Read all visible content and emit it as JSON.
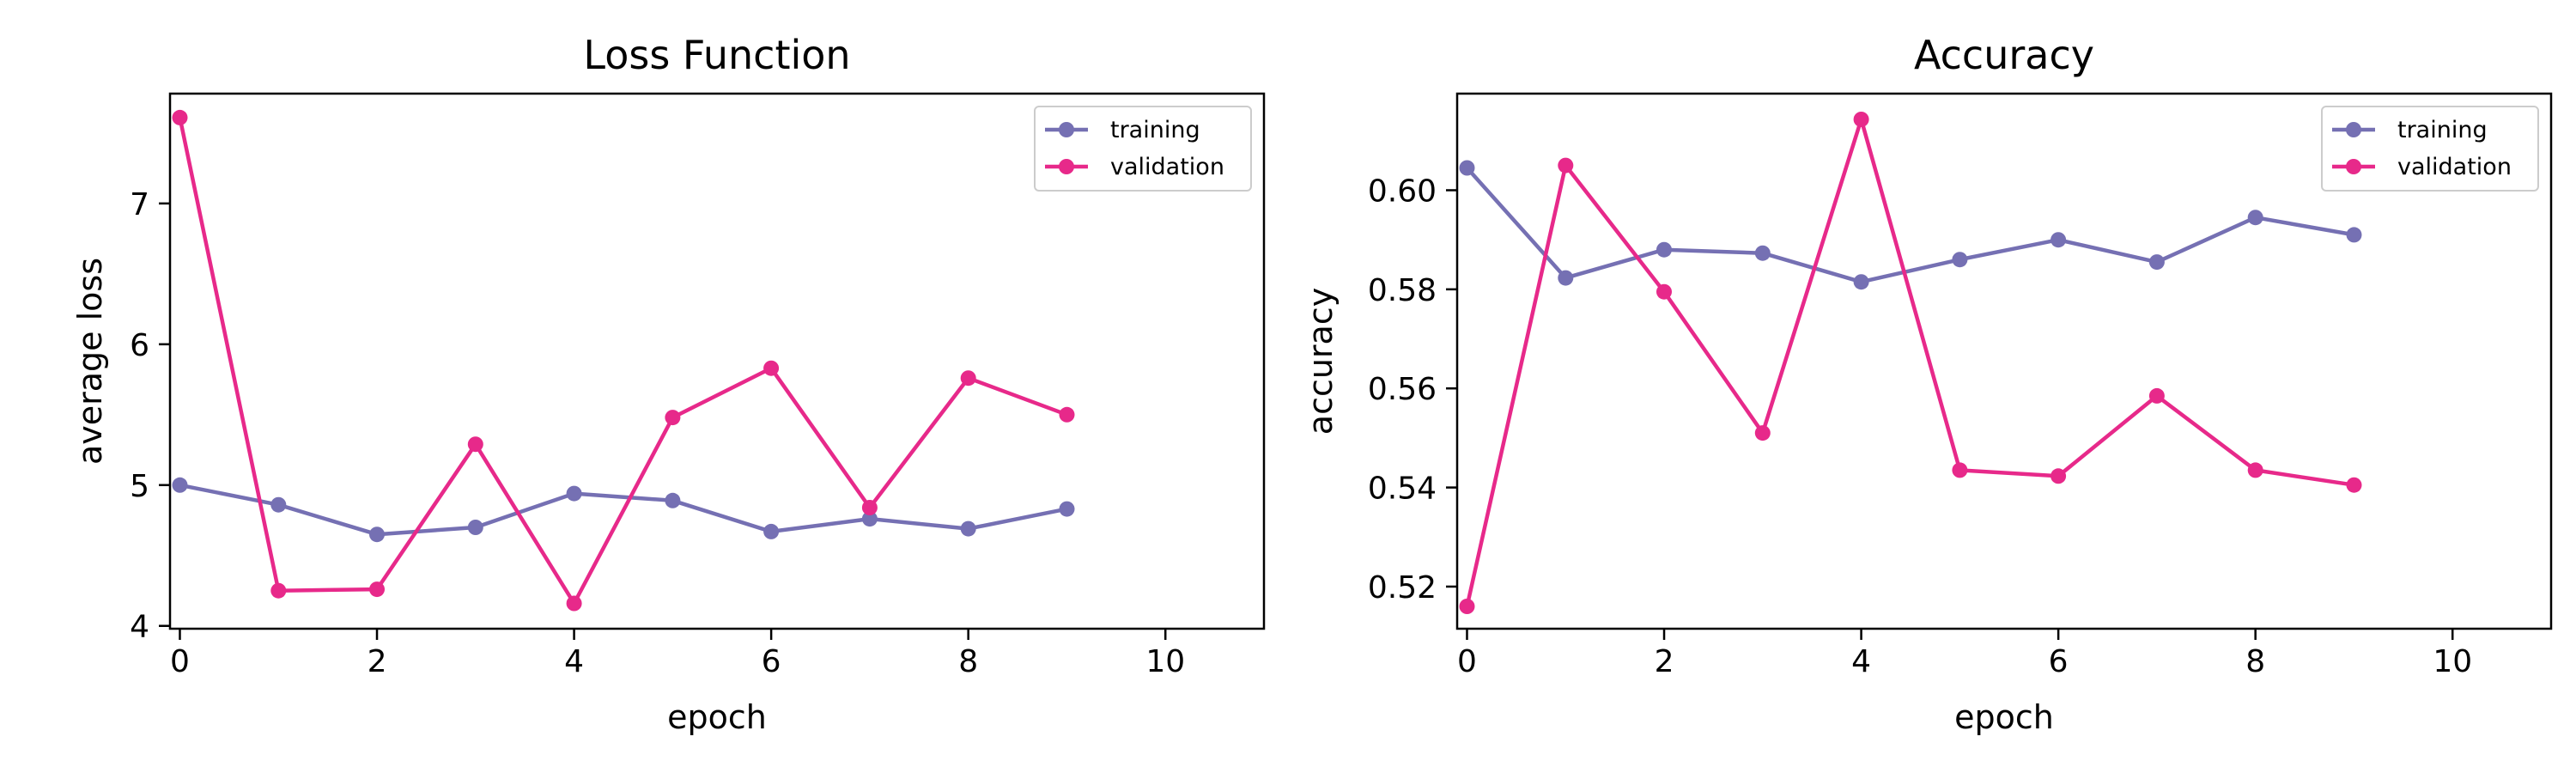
{
  "chart_data": [
    {
      "type": "line",
      "title": "Loss Function",
      "xlabel": "epoch",
      "ylabel": "average loss",
      "xlim": [
        -0.1,
        11
      ],
      "ylim": [
        3.98,
        7.78
      ],
      "xticks": [
        0,
        2,
        4,
        6,
        8,
        10
      ],
      "yticks": [
        4,
        5,
        6,
        7
      ],
      "grid": false,
      "legend_position": "top-right",
      "x": [
        0,
        1,
        2,
        3,
        4,
        5,
        6,
        7,
        8,
        9
      ],
      "series": [
        {
          "name": "training",
          "color": "#7570b3",
          "values": [
            5.0,
            4.86,
            4.65,
            4.7,
            4.94,
            4.89,
            4.67,
            4.76,
            4.69,
            4.83
          ]
        },
        {
          "name": "validation",
          "color": "#e7298a",
          "values": [
            7.61,
            4.25,
            4.26,
            5.29,
            4.16,
            5.48,
            5.83,
            4.84,
            5.76,
            5.5
          ]
        }
      ]
    },
    {
      "type": "line",
      "title": "Accuracy",
      "xlabel": "epoch",
      "ylabel": "accuracy",
      "xlim": [
        -0.1,
        11
      ],
      "ylim": [
        0.5115,
        0.6195
      ],
      "xticks": [
        0,
        2,
        4,
        6,
        8,
        10
      ],
      "yticks": [
        0.52,
        0.54,
        0.56,
        0.58,
        0.6
      ],
      "grid": false,
      "legend_position": "top-right",
      "x": [
        0,
        1,
        2,
        3,
        4,
        5,
        6,
        7,
        8,
        9
      ],
      "series": [
        {
          "name": "training",
          "color": "#7570b3",
          "values": [
            0.6045,
            0.5823,
            0.588,
            0.5873,
            0.5815,
            0.586,
            0.59,
            0.5855,
            0.5945,
            0.591
          ]
        },
        {
          "name": "validation",
          "color": "#e7298a",
          "values": [
            0.516,
            0.605,
            0.5795,
            0.551,
            0.6143,
            0.5435,
            0.5423,
            0.5585,
            0.5435,
            0.5405
          ]
        }
      ]
    }
  ]
}
